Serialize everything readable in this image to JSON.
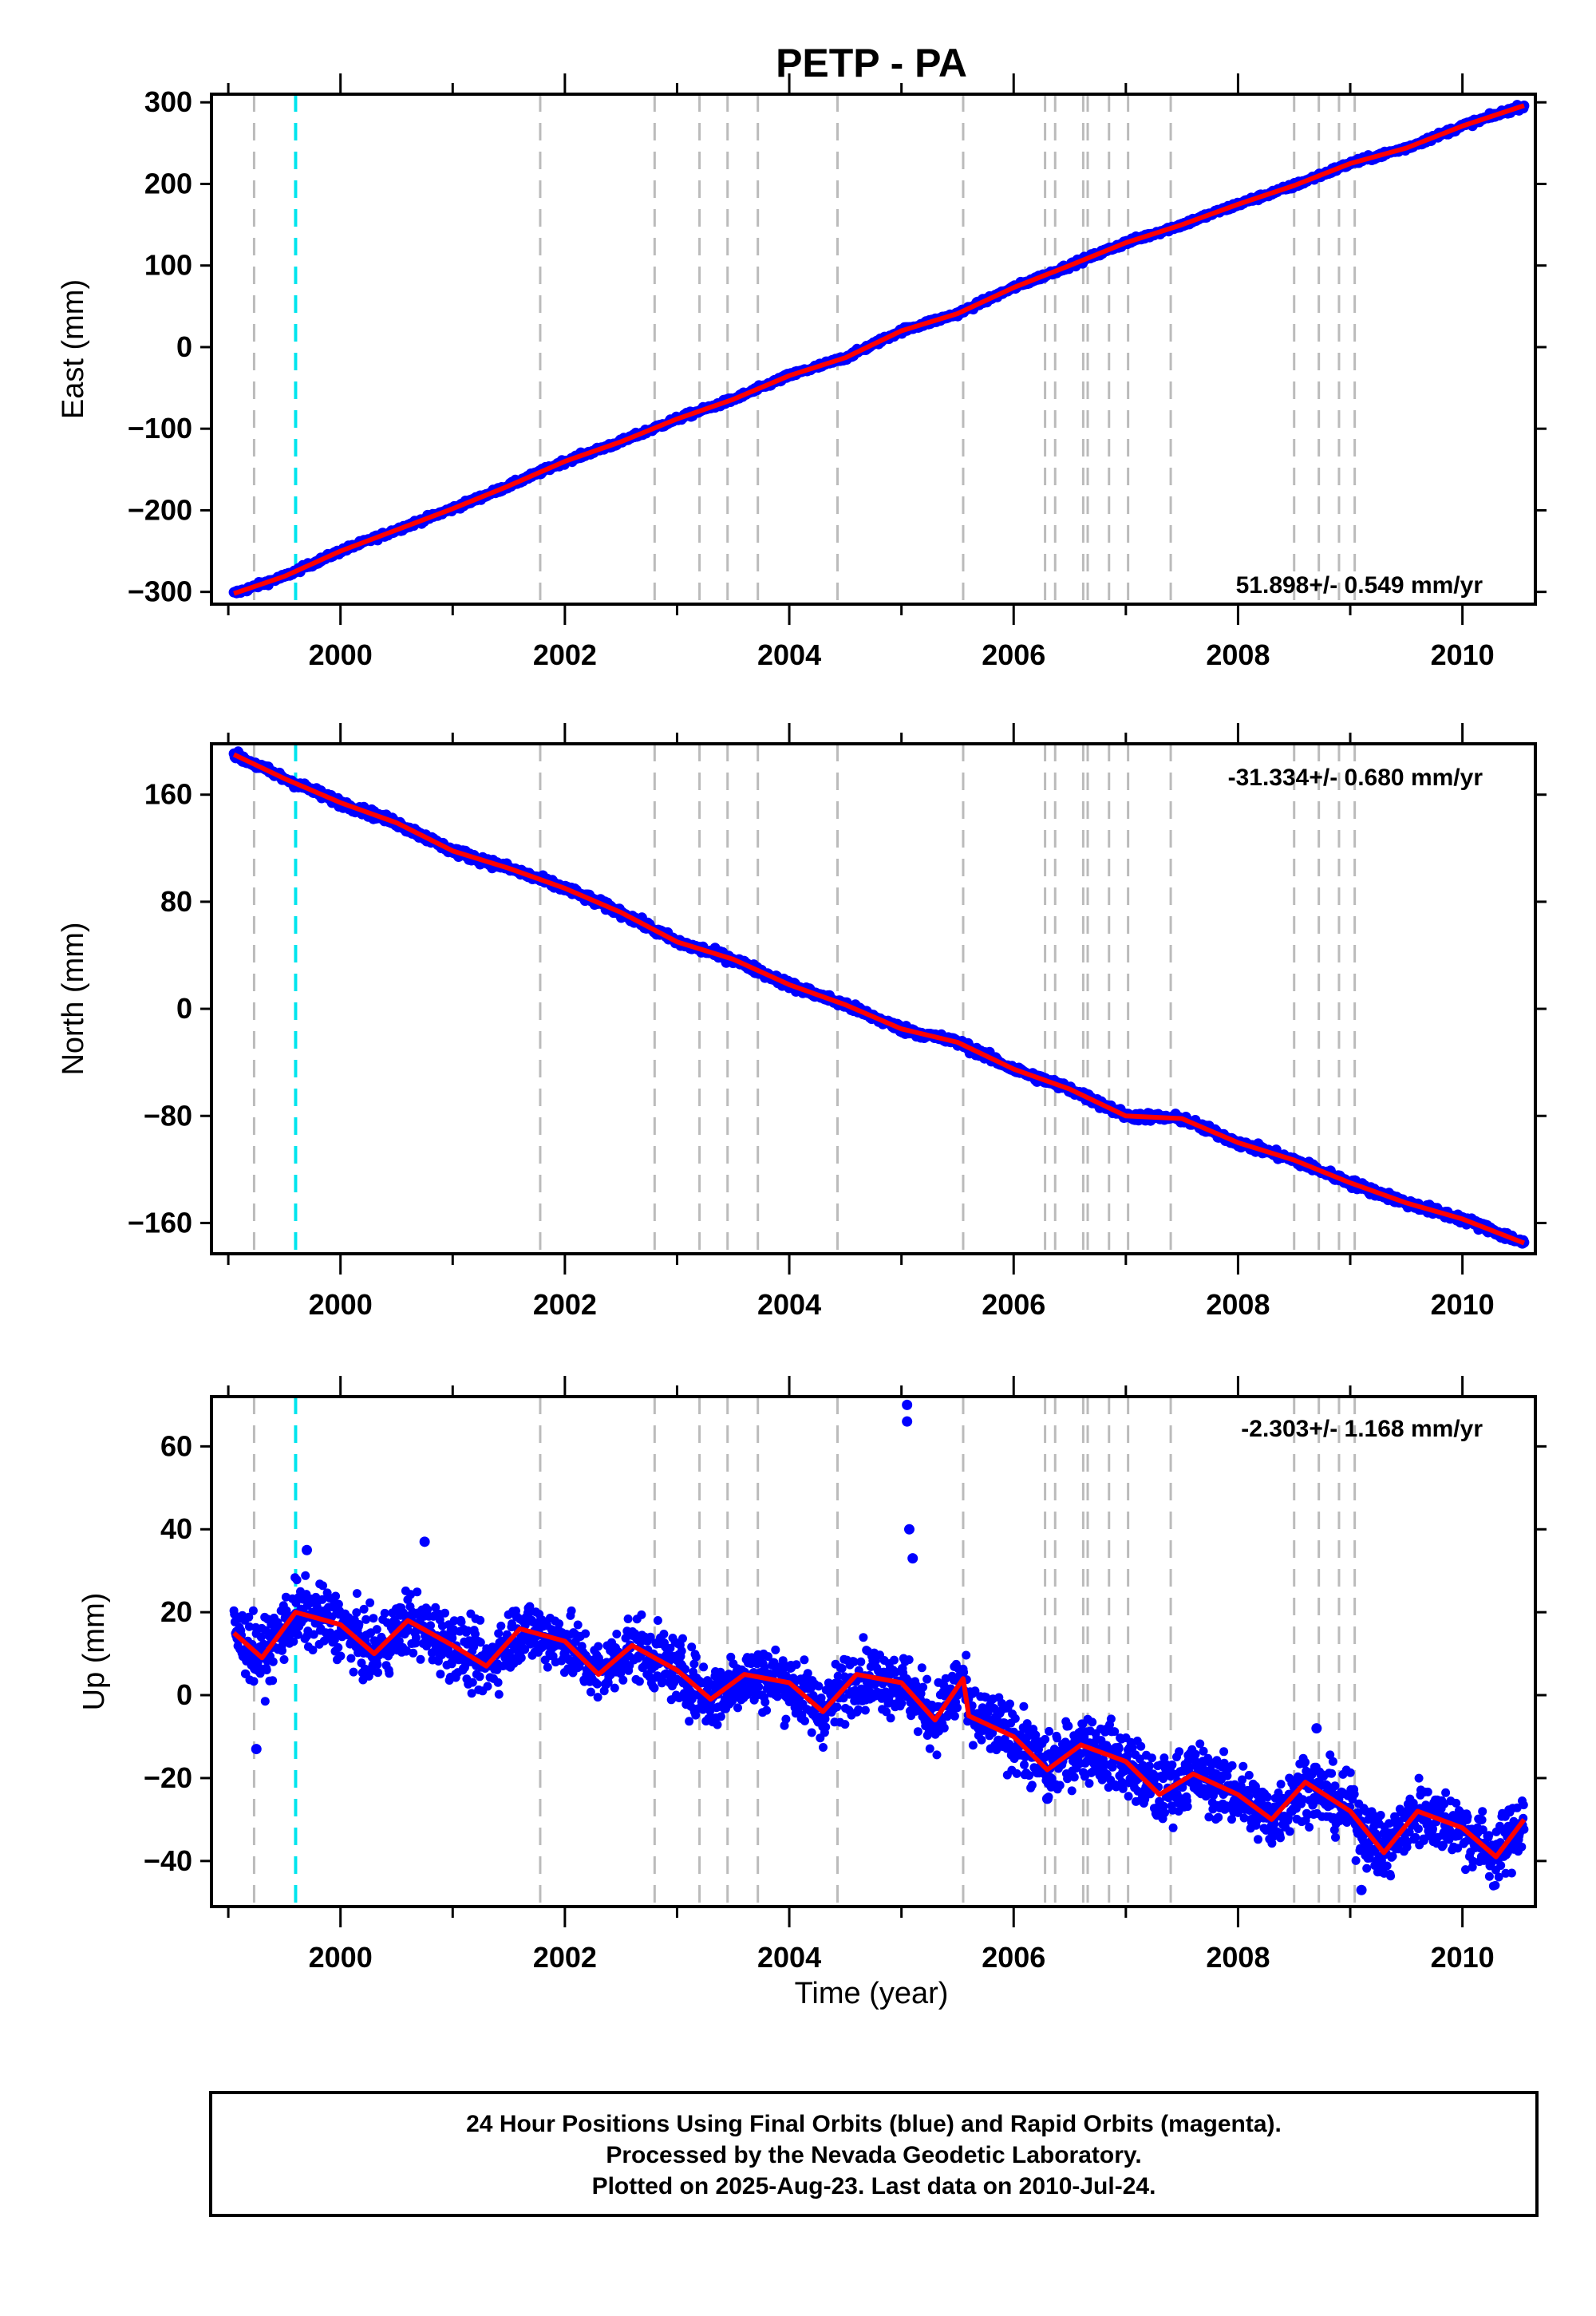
{
  "title": "PETP - PA",
  "xlabel": "Time (year)",
  "footer": {
    "line1": "24 Hour Positions Using Final Orbits (blue) and Rapid Orbits (magenta).",
    "line2": "Processed by the Nevada Geodetic Laboratory.",
    "line3": "Plotted on 2025-Aug-23. Last data on 2010-Jul-24."
  },
  "colors": {
    "final_orbits": "#0000ff",
    "rapid_orbits": "#ff00ff",
    "model_fit": "#ff0000",
    "equipment_change": "#bbbbbb",
    "antenna_change": "#00e5ee"
  },
  "chart_data": [
    {
      "type": "scatter",
      "component": "east",
      "ylabel": "East (mm)",
      "rate_label": "51.898+/- 0.549 mm/yr",
      "xlim": [
        1998.85,
        2010.65
      ],
      "ylim": [
        -315,
        310
      ],
      "yticks": [
        -300,
        -200,
        -100,
        0,
        100,
        200,
        300
      ],
      "xticks": [
        2000,
        2002,
        2004,
        2006,
        2008,
        2010
      ],
      "grid": false,
      "series": [
        {
          "role": "data",
          "x": [
            1999.05,
            1999.5,
            2000.0,
            2000.5,
            2001.0,
            2001.5,
            2002.0,
            2002.5,
            2003.0,
            2003.5,
            2004.0,
            2004.5,
            2005.0,
            2005.5,
            2006.0,
            2006.5,
            2007.0,
            2007.5,
            2008.0,
            2008.5,
            2009.0,
            2009.5,
            2010.0,
            2010.55
          ],
          "y": [
            -302,
            -281,
            -250,
            -224,
            -198,
            -170,
            -140,
            -116,
            -88,
            -64,
            -35,
            -13,
            20,
            41,
            73,
            100,
            128,
            150,
            175,
            198,
            225,
            244,
            271,
            296
          ]
        },
        {
          "role": "fit",
          "x": [
            1999.05,
            1999.5,
            2000.0,
            2000.5,
            2001.0,
            2001.5,
            2002.0,
            2002.5,
            2003.0,
            2003.5,
            2004.0,
            2004.5,
            2005.0,
            2005.5,
            2006.0,
            2006.5,
            2007.0,
            2007.5,
            2008.0,
            2008.5,
            2009.0,
            2009.5,
            2010.0,
            2010.55
          ],
          "y": [
            -302,
            -281,
            -250,
            -224,
            -198,
            -170,
            -140,
            -116,
            -88,
            -64,
            -35,
            -13,
            20,
            41,
            73,
            100,
            128,
            150,
            175,
            198,
            225,
            244,
            271,
            296
          ]
        }
      ]
    },
    {
      "type": "scatter",
      "component": "north",
      "ylabel": "North (mm)",
      "rate_label": "-31.334+/- 0.680 mm/yr",
      "xlim": [
        1998.85,
        2010.65
      ],
      "ylim": [
        -183,
        198
      ],
      "yticks": [
        -160,
        -80,
        0,
        80,
        160
      ],
      "xticks": [
        2000,
        2002,
        2004,
        2006,
        2008,
        2010
      ],
      "grid": false,
      "series": [
        {
          "role": "data",
          "x": [
            1999.05,
            1999.5,
            2000.0,
            2000.5,
            2001.0,
            2001.5,
            2002.0,
            2002.5,
            2003.0,
            2003.5,
            2004.0,
            2004.5,
            2005.0,
            2005.5,
            2006.0,
            2006.5,
            2007.0,
            2007.5,
            2008.0,
            2008.5,
            2009.0,
            2009.5,
            2010.0,
            2010.55
          ],
          "y": [
            190,
            172,
            154,
            139,
            118,
            105,
            90,
            72,
            50,
            37,
            18,
            3,
            -15,
            -25,
            -45,
            -60,
            -80,
            -82,
            -100,
            -113,
            -130,
            -145,
            -157,
            -175
          ]
        },
        {
          "role": "fit",
          "x": [
            1999.05,
            1999.5,
            2000.0,
            2000.5,
            2001.0,
            2001.5,
            2002.0,
            2002.5,
            2003.0,
            2003.5,
            2004.0,
            2004.5,
            2005.0,
            2005.5,
            2006.0,
            2006.5,
            2007.0,
            2007.5,
            2008.0,
            2008.5,
            2009.0,
            2009.5,
            2010.0,
            2010.55
          ],
          "y": [
            190,
            172,
            154,
            139,
            118,
            105,
            90,
            72,
            50,
            37,
            18,
            3,
            -15,
            -25,
            -45,
            -60,
            -80,
            -82,
            -100,
            -113,
            -130,
            -145,
            -157,
            -175
          ]
        }
      ]
    },
    {
      "type": "scatter",
      "component": "up",
      "ylabel": "Up (mm)",
      "rate_label": "-2.303+/- 1.168 mm/yr",
      "xlim": [
        1998.85,
        2010.65
      ],
      "ylim": [
        -51,
        72
      ],
      "yticks": [
        -40,
        -20,
        0,
        20,
        40,
        60
      ],
      "xticks": [
        2000,
        2002,
        2004,
        2006,
        2008,
        2010
      ],
      "grid": false,
      "series": [
        {
          "role": "data",
          "x": [
            1999.05,
            1999.3,
            1999.6,
            2000.0,
            2000.3,
            2000.6,
            2001.0,
            2001.3,
            2001.6,
            2002.0,
            2002.3,
            2002.6,
            2003.0,
            2003.3,
            2003.6,
            2004.0,
            2004.3,
            2004.6,
            2005.0,
            2005.3,
            2005.55,
            2005.6,
            2006.0,
            2006.3,
            2006.6,
            2007.0,
            2007.3,
            2007.6,
            2008.0,
            2008.3,
            2008.6,
            2009.0,
            2009.3,
            2009.6,
            2010.0,
            2010.3,
            2010.55
          ],
          "y": [
            15,
            9,
            20,
            17,
            10,
            18,
            12,
            7,
            16,
            13,
            5,
            12,
            6,
            -1,
            5,
            3,
            -4,
            5,
            3,
            -6,
            4,
            -5,
            -10,
            -18,
            -12,
            -16,
            -24,
            -19,
            -24,
            -30,
            -21,
            -28,
            -38,
            -28,
            -32,
            -39,
            -30
          ]
        },
        {
          "role": "outliers",
          "x": [
            1999.25,
            1999.7,
            2000.75,
            2005.05,
            2005.05,
            2005.07,
            2005.1,
            2006.3,
            2008.7,
            2009.1
          ],
          "y": [
            -13,
            35,
            37,
            70,
            66,
            40,
            33,
            -25,
            -8,
            -47
          ]
        },
        {
          "role": "fit",
          "x": [
            1999.05,
            1999.3,
            1999.6,
            2000.0,
            2000.3,
            2000.6,
            2001.0,
            2001.3,
            2001.6,
            2002.0,
            2002.3,
            2002.6,
            2003.0,
            2003.3,
            2003.6,
            2004.0,
            2004.3,
            2004.6,
            2005.0,
            2005.3,
            2005.55,
            2005.6,
            2006.0,
            2006.3,
            2006.6,
            2007.0,
            2007.3,
            2007.6,
            2008.0,
            2008.3,
            2008.6,
            2009.0,
            2009.3,
            2009.6,
            2010.0,
            2010.3,
            2010.55
          ],
          "y": [
            15,
            9,
            20,
            17,
            10,
            18,
            12,
            7,
            16,
            13,
            5,
            12,
            6,
            -1,
            5,
            3,
            -4,
            5,
            3,
            -6,
            4,
            -5,
            -10,
            -18,
            -12,
            -16,
            -24,
            -19,
            -24,
            -30,
            -21,
            -28,
            -38,
            -28,
            -32,
            -39,
            -30
          ]
        }
      ]
    }
  ],
  "event_lines": {
    "equipment_changes": [
      1999.23,
      2001.78,
      2002.8,
      2003.2,
      2003.45,
      2003.72,
      2004.43,
      2005.55,
      2006.28,
      2006.37,
      2006.62,
      2006.66,
      2006.85,
      2007.02,
      2007.4,
      2008.5,
      2008.72,
      2008.9,
      2009.04
    ],
    "antenna_changes": [
      1999.6
    ]
  }
}
